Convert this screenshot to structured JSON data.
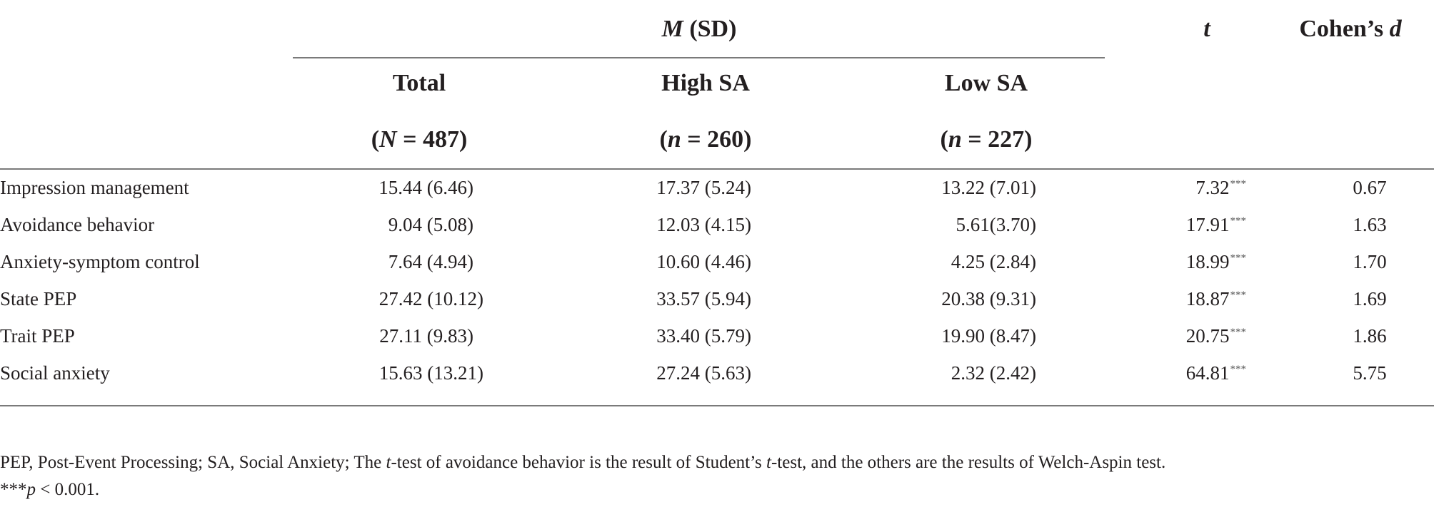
{
  "header": {
    "group_label_italic": "M",
    "group_label_rest": " (SD)",
    "t_label": "t",
    "d_label_prefix": "Cohen’s ",
    "d_label_italic": "d",
    "columns": [
      {
        "name": "Total",
        "n_open": "(",
        "n_symbol": "N",
        "n_eq": " = ",
        "n_value": "487",
        "n_close": ")"
      },
      {
        "name": "High SA",
        "n_open": "(",
        "n_symbol": "n",
        "n_eq": " = ",
        "n_value": "260",
        "n_close": ")"
      },
      {
        "name": "Low SA",
        "n_open": "(",
        "n_symbol": "n",
        "n_eq": " = ",
        "n_value": "227",
        "n_close": ")"
      }
    ]
  },
  "rows": [
    {
      "label": "Impression management",
      "total": "15.44 (6.46)",
      "high": "17.37 (5.24)",
      "low": "13.22 (7.01)",
      "t": "7.32",
      "sig": "***",
      "d": "0.67"
    },
    {
      "label": "Avoidance behavior",
      "total": "9.04 (5.08)",
      "high": "12.03 (4.15)",
      "low": "5.61(3.70)",
      "t": "17.91",
      "sig": "***",
      "d": "1.63"
    },
    {
      "label": "Anxiety-symptom control",
      "total": "7.64 (4.94)",
      "high": "10.60 (4.46)",
      "low": "4.25 (2.84)",
      "t": "18.99",
      "sig": "***",
      "d": "1.70"
    },
    {
      "label": "State PEP",
      "total": "27.42 (10.12)",
      "high": "33.57 (5.94)",
      "low": "20.38 (9.31)",
      "t": "18.87",
      "sig": "***",
      "d": "1.69"
    },
    {
      "label": "Trait PEP",
      "total": "27.11 (9.83)",
      "high": "33.40 (5.79)",
      "low": "19.90 (8.47)",
      "t": "20.75",
      "sig": "***",
      "d": "1.86"
    },
    {
      "label": "Social anxiety",
      "total": "15.63 (13.21)",
      "high": "27.24 (5.63)",
      "low": "2.32 (2.42)",
      "t": "64.81",
      "sig": "***",
      "d": "5.75"
    }
  ],
  "footnote": {
    "line1_a": "PEP, Post-Event Processing; SA, Social Anxiety; The ",
    "line1_t1": "t",
    "line1_b": "-test of avoidance behavior is the result of Student’s ",
    "line1_t2": "t",
    "line1_c": "-test, and the others are the results of Welch-Aspin test.",
    "line2_stars": "***",
    "line2_p": "p",
    "line2_rest": " < 0.001."
  }
}
